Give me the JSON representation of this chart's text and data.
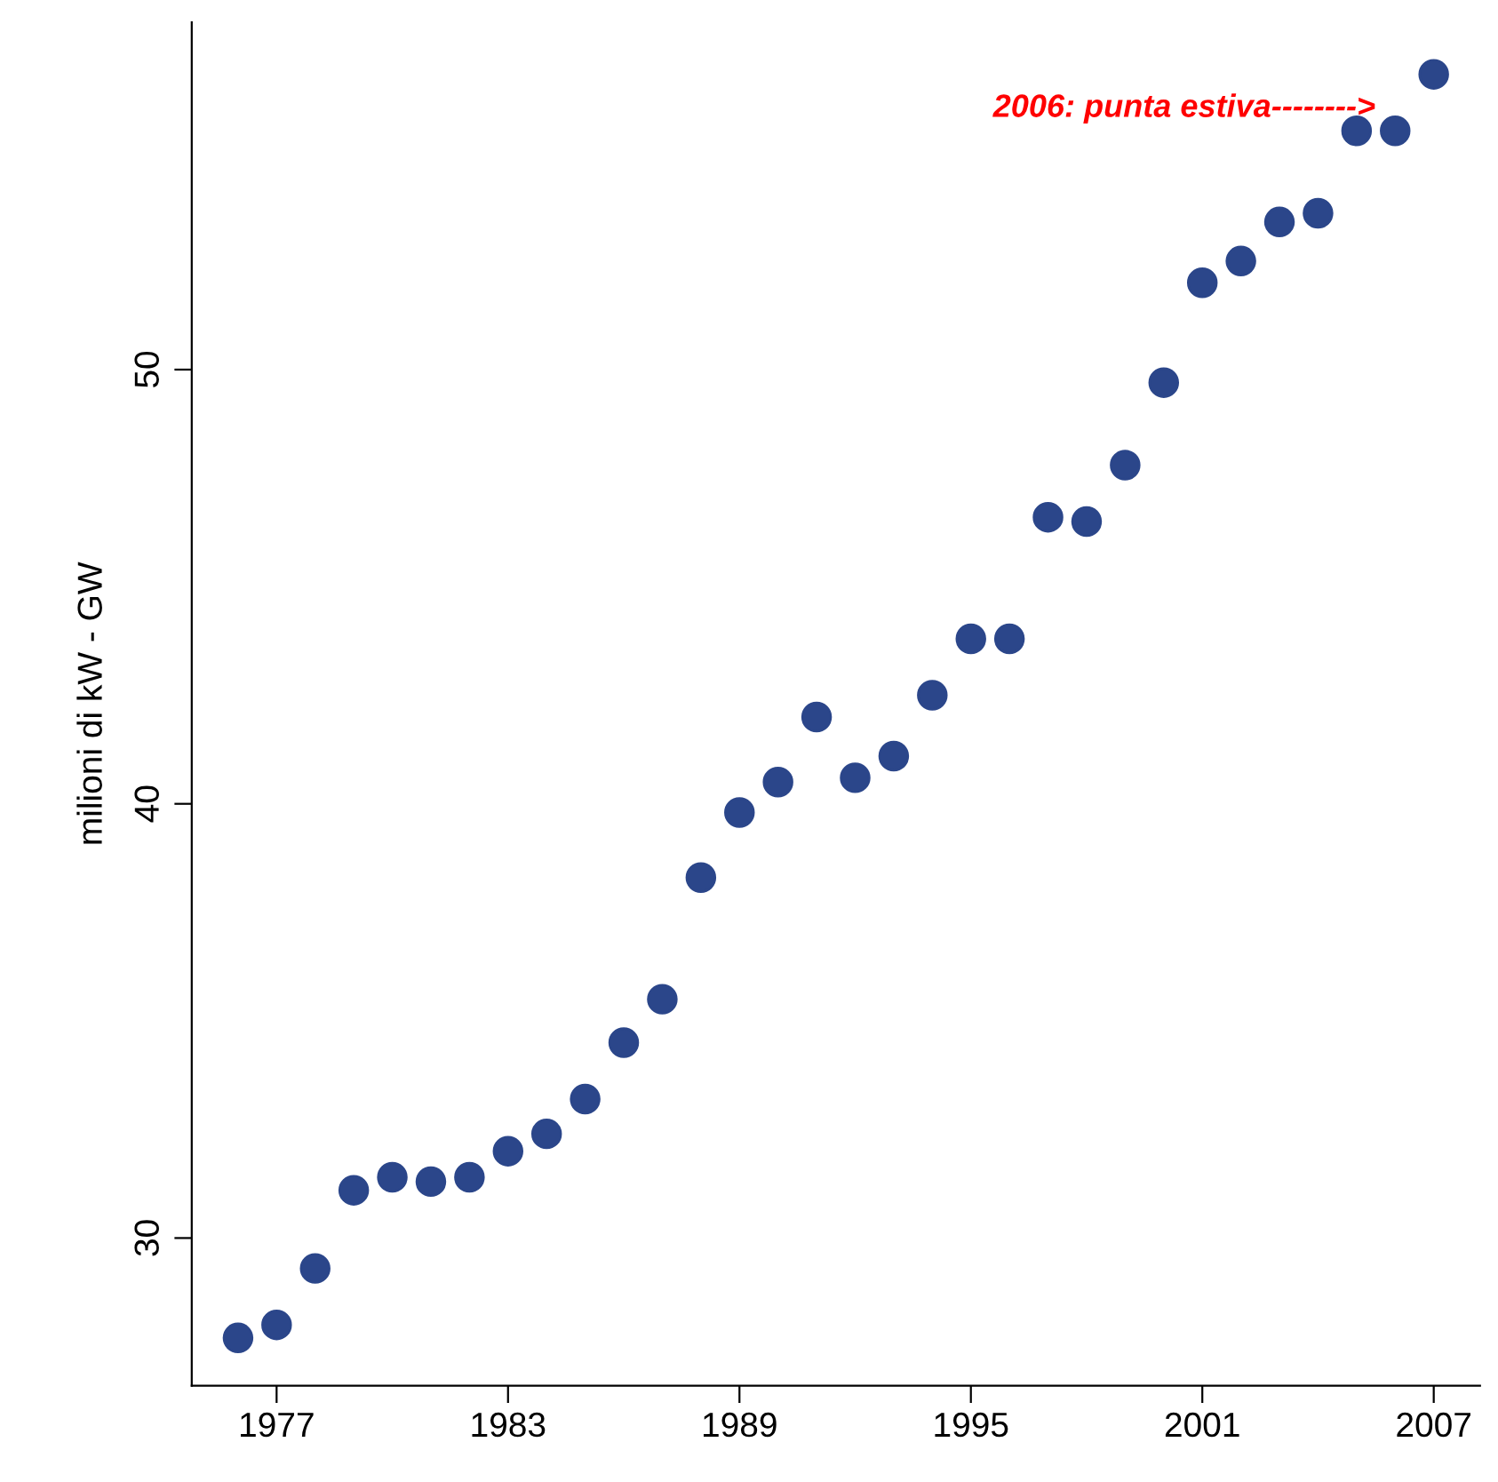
{
  "chart_data": {
    "type": "scatter",
    "ylabel": "milioni di kW - GW",
    "x": [
      1976,
      1977,
      1978,
      1979,
      1980,
      1981,
      1982,
      1983,
      1984,
      1985,
      1986,
      1987,
      1988,
      1989,
      1990,
      1991,
      1992,
      1993,
      1994,
      1995,
      1996,
      1997,
      1998,
      1999,
      2000,
      2001,
      2002,
      2003,
      2004,
      2005,
      2006,
      2007
    ],
    "series": [
      {
        "color": "#2b468a",
        "values": [
          27.7,
          28.0,
          29.3,
          31.1,
          31.4,
          31.3,
          31.4,
          32.0,
          32.4,
          33.2,
          34.5,
          35.5,
          38.3,
          39.8,
          40.5,
          42.0,
          40.6,
          41.1,
          42.5,
          43.8,
          43.8,
          46.6,
          46.5,
          47.8,
          49.7,
          52.0,
          52.5,
          53.4,
          53.6,
          55.5,
          55.5,
          56.8
        ]
      }
    ],
    "xlim": [
      1974.8,
      2008.2
    ],
    "xticks": [
      1977,
      1983,
      1989,
      1995,
      2001,
      2007
    ],
    "ylim": [
      26.6,
      58.0
    ],
    "yticks": [
      30,
      40,
      50
    ],
    "marker": "circle",
    "grid": false,
    "legend": false,
    "annotations": [
      {
        "text": "2006: punta estiva-------->",
        "x": 2006,
        "y": 55.5
      }
    ]
  }
}
